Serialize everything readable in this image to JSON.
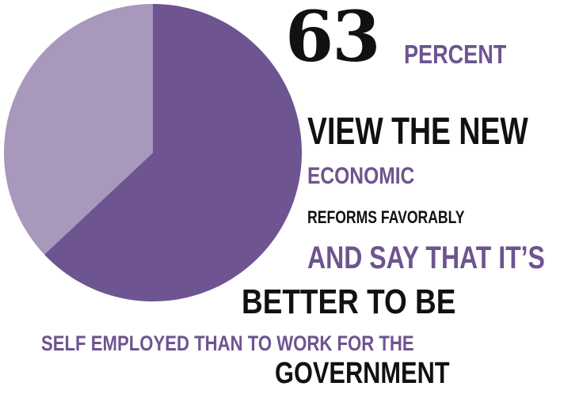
{
  "chart_data": {
    "type": "pie",
    "categories": [
      "",
      ""
    ],
    "values": [
      63,
      37
    ],
    "colors": [
      "#6e5490",
      "#a798bc"
    ],
    "title": "",
    "legend": "none"
  },
  "headline": {
    "number": "63",
    "unit": "PERCENT",
    "line1": "VIEW THE NEW",
    "line2": "ECONOMIC",
    "line3": "REFORMS FAVORABLY",
    "line4": "AND SAY THAT IT’S",
    "line5": "BETTER TO BE",
    "line6": "SELF EMPLOYED THAN TO WORK FOR THE",
    "line7": "GOVERNMENT"
  },
  "colors": {
    "accent": "#6e5490",
    "dark": "#111111"
  }
}
